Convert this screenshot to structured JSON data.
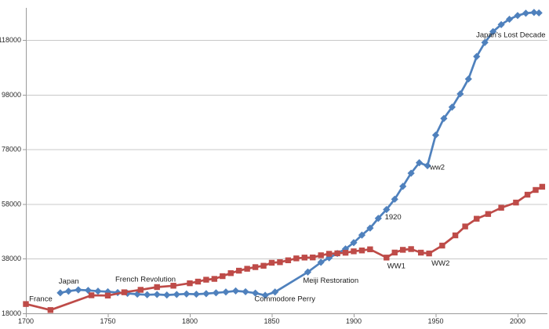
{
  "chart_data": {
    "type": "line",
    "title": "",
    "xlabel": "",
    "ylabel": "",
    "grid": "horizontal",
    "legend": "none",
    "x_axis": {
      "min": 1700,
      "max": 2019,
      "ticks": [
        1700,
        1750,
        1800,
        1850,
        1900,
        1950,
        2000
      ]
    },
    "y_axis": {
      "min": 18000,
      "max": 130000,
      "ticks": [
        18000,
        38000,
        58000,
        78000,
        98000,
        118000
      ]
    },
    "colors": {
      "japan": "#4F81BD",
      "france": "#BE4B48",
      "gridline": "#C8C8C8",
      "axis": "#9B9B9B",
      "text": "#2B2B2B"
    },
    "series": [
      {
        "name": "Japan",
        "color": "#4F81BD",
        "marker": "diamond",
        "points": [
          [
            1721,
            25500
          ],
          [
            1726,
            26100
          ],
          [
            1732,
            26600
          ],
          [
            1738,
            26400
          ],
          [
            1744,
            26100
          ],
          [
            1750,
            25900
          ],
          [
            1756,
            25600
          ],
          [
            1762,
            25300
          ],
          [
            1768,
            25000
          ],
          [
            1774,
            24800
          ],
          [
            1780,
            24900
          ],
          [
            1786,
            24700
          ],
          [
            1792,
            24900
          ],
          [
            1798,
            25100
          ],
          [
            1804,
            25000
          ],
          [
            1810,
            25200
          ],
          [
            1816,
            25500
          ],
          [
            1822,
            25800
          ],
          [
            1828,
            26200
          ],
          [
            1834,
            25900
          ],
          [
            1840,
            25400
          ],
          [
            1846,
            24600
          ],
          [
            1852,
            25800
          ],
          [
            1872,
            33110
          ],
          [
            1880,
            36650
          ],
          [
            1885,
            38310
          ],
          [
            1890,
            39900
          ],
          [
            1895,
            41560
          ],
          [
            1900,
            43850
          ],
          [
            1905,
            46620
          ],
          [
            1910,
            49180
          ],
          [
            1915,
            52750
          ],
          [
            1920,
            55960
          ],
          [
            1925,
            59740
          ],
          [
            1930,
            64450
          ],
          [
            1935,
            69250
          ],
          [
            1940,
            73080
          ],
          [
            1945,
            72000
          ],
          [
            1950,
            83200
          ],
          [
            1955,
            89280
          ],
          [
            1960,
            93420
          ],
          [
            1965,
            98280
          ],
          [
            1970,
            103720
          ],
          [
            1975,
            111940
          ],
          [
            1980,
            117060
          ],
          [
            1985,
            121050
          ],
          [
            1990,
            123610
          ],
          [
            1995,
            125570
          ],
          [
            2000,
            126930
          ],
          [
            2005,
            127770
          ],
          [
            2010,
            128060
          ],
          [
            2013,
            127900
          ]
        ]
      },
      {
        "name": "France",
        "color": "#BE4B48",
        "marker": "square",
        "points": [
          [
            1700,
            21400
          ],
          [
            1715,
            19200
          ],
          [
            1740,
            24600
          ],
          [
            1750,
            24500
          ],
          [
            1760,
            25700
          ],
          [
            1770,
            26600
          ],
          [
            1780,
            27600
          ],
          [
            1790,
            28100
          ],
          [
            1800,
            29000
          ],
          [
            1805,
            29600
          ],
          [
            1810,
            30300
          ],
          [
            1815,
            30600
          ],
          [
            1820,
            31600
          ],
          [
            1825,
            32700
          ],
          [
            1830,
            33600
          ],
          [
            1835,
            34300
          ],
          [
            1840,
            34900
          ],
          [
            1845,
            35400
          ],
          [
            1850,
            36500
          ],
          [
            1855,
            36700
          ],
          [
            1860,
            37400
          ],
          [
            1865,
            38100
          ],
          [
            1870,
            38400
          ],
          [
            1875,
            38440
          ],
          [
            1880,
            39240
          ],
          [
            1885,
            39780
          ],
          [
            1890,
            39950
          ],
          [
            1895,
            40160
          ],
          [
            1900,
            40680
          ],
          [
            1905,
            41000
          ],
          [
            1910,
            41420
          ],
          [
            1920,
            38400
          ],
          [
            1925,
            40230
          ],
          [
            1930,
            41230
          ],
          [
            1935,
            41500
          ],
          [
            1941,
            40200
          ],
          [
            1946,
            39900
          ],
          [
            1954,
            42780
          ],
          [
            1962,
            46520
          ],
          [
            1968,
            49780
          ],
          [
            1975,
            52600
          ],
          [
            1982,
            54340
          ],
          [
            1990,
            56620
          ],
          [
            1999,
            58520
          ],
          [
            2006,
            61400
          ],
          [
            2011,
            63130
          ],
          [
            2015,
            64300
          ]
        ]
      }
    ],
    "annotations": [
      {
        "text": "France",
        "year": 1702,
        "value": 23300,
        "anchor": "start"
      },
      {
        "text": "Japan",
        "year": 1720,
        "value": 29800,
        "anchor": "start"
      },
      {
        "text": "French Revolution",
        "year": 1773,
        "value": 30500,
        "anchor": "middle"
      },
      {
        "text": "Commodore Perry",
        "year": 1858,
        "value": 23300,
        "anchor": "middle"
      },
      {
        "text": "Meiji Restoration",
        "year": 1886,
        "value": 30000,
        "anchor": "middle"
      },
      {
        "text": "WW1",
        "year": 1926,
        "value": 35300,
        "anchor": "middle"
      },
      {
        "text": "1920",
        "year": 1924,
        "value": 53200,
        "anchor": "middle"
      },
      {
        "text": "WW2",
        "year": 1953,
        "value": 36400,
        "anchor": "middle"
      },
      {
        "text": "ww2",
        "year": 1951,
        "value": 71500,
        "anchor": "middle"
      },
      {
        "text": "Japan's Lost Decade",
        "year": 2017,
        "value": 119800,
        "anchor": "end"
      }
    ]
  }
}
